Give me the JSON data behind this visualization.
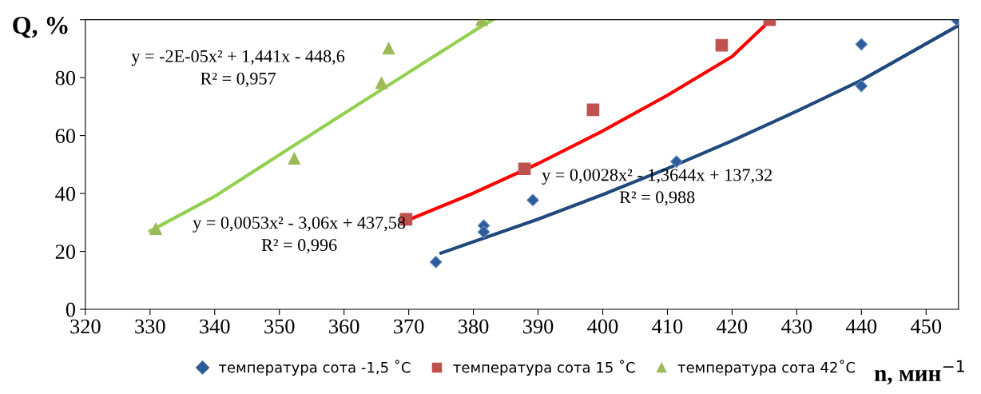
{
  "chart_data": {
    "type": "scatter",
    "xlabel": "n, мин$^{−1}$",
    "ylabel": "Q, %",
    "xlim": [
      320,
      455
    ],
    "xticks": [
      320,
      330,
      340,
      350,
      360,
      370,
      380,
      390,
      400,
      410,
      420,
      430,
      440,
      450
    ],
    "ylim": [
      0,
      100
    ],
    "yticks": [
      0,
      20,
      40,
      60,
      80,
      {
        "value": 100,
        "label": null
      }
    ],
    "grid": false,
    "legend": "bottom",
    "series": [
      {
        "name": "температура сота -1,5 ˚C",
        "marker": "diamond",
        "color": "#2e5c9a",
        "x": [
          374.2,
          381.6,
          381.6,
          389.2,
          411.4,
          440.0,
          440.0,
          454.7
        ],
        "values": [
          16.3,
          28.9,
          26.7,
          37.7,
          51.0,
          91.5,
          77.1,
          100
        ]
      },
      {
        "name": "температура сота 15 ˚C",
        "marker": "square",
        "color": "#c0504d",
        "x": [
          369.6,
          387.9,
          398.5,
          418.4,
          425.8
        ],
        "values": [
          31.1,
          48.5,
          68.9,
          91.2,
          100
        ]
      },
      {
        "name": "температура сота 42˚C",
        "marker": "triangle",
        "color": "#9bbb59",
        "x": [
          330.9,
          352.3,
          365.8,
          366.9,
          381.3
        ],
        "values": [
          27.8,
          52.1,
          78.2,
          90.1,
          100
        ]
      },
      {
        "type": "line",
        "color": "#1f497d",
        "marker": "none",
        "x": [
          375,
          390,
          400,
          410,
          420,
          430,
          440,
          455
        ],
        "values": [
          19.4,
          31.1,
          39.6,
          48.6,
          58.2,
          68.4,
          79.1,
          98
        ]
      },
      {
        "type": "line",
        "color": "#ff0000",
        "marker": "none",
        "x": [
          370,
          380,
          390,
          400,
          410,
          420,
          426
        ],
        "values": [
          30.9,
          40.1,
          50.3,
          61.6,
          73.9,
          87.3,
          100
        ]
      },
      {
        "type": "line",
        "color": "#92d050",
        "marker": "none",
        "x": [
          330,
          340,
          350,
          360,
          370,
          380,
          383
        ],
        "values": [
          27,
          39.0,
          53.3,
          67.6,
          81.8,
          96.0,
          100
        ]
      }
    ],
    "annotations": [
      "y = -2E-05x² + 1,441x - 448,6\nR² = 0,957",
      "y = 0,0053x² - 3,06x + 437,58\nR² = 0,996",
      "y = 0,0028x² - 1,3644x + 137,32\nR² = 0,988"
    ]
  }
}
